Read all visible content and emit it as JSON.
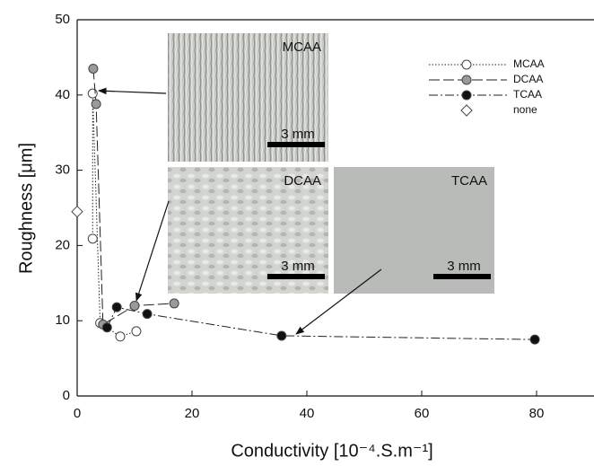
{
  "chart_data": {
    "type": "scatter",
    "xlabel": "Conductivity [10⁻⁴.S.m⁻¹]",
    "ylabel": "Roughness [μm]",
    "xlim": [
      0,
      90
    ],
    "ylim": [
      0,
      50
    ],
    "xticks": [
      0,
      20,
      40,
      60,
      80
    ],
    "yticks": [
      0,
      10,
      20,
      30,
      40,
      50
    ],
    "series": [
      {
        "name": "MCAA",
        "color": "#ffffff",
        "line_style": "dotted",
        "x": [
          2.7,
          2.7,
          4,
          7.5,
          10.3
        ],
        "values": [
          20.9,
          40.2,
          9.7,
          7.9,
          8.6
        ]
      },
      {
        "name": "DCAA",
        "color": "#9a9a9a",
        "line_style": "dashed",
        "x": [
          2.8,
          3.3,
          4.5,
          10,
          16.9
        ],
        "values": [
          43.5,
          38.8,
          9.5,
          12,
          12.3
        ]
      },
      {
        "name": "TCAA",
        "color": "#111111",
        "line_style": "dashdot",
        "x": [
          5.2,
          6.9,
          12.2,
          35.6,
          79.7
        ],
        "values": [
          9.1,
          11.8,
          10.9,
          8.0,
          7.5
        ]
      },
      {
        "name": "none",
        "color": "#ffffff",
        "marker": "diamond",
        "x": [
          0
        ],
        "values": [
          24.5
        ]
      }
    ],
    "insets": [
      {
        "label": "MCAA",
        "scale": "3 mm"
      },
      {
        "label": "DCAA",
        "scale": "3 mm"
      },
      {
        "label": "TCAA",
        "scale": "3 mm"
      }
    ]
  }
}
